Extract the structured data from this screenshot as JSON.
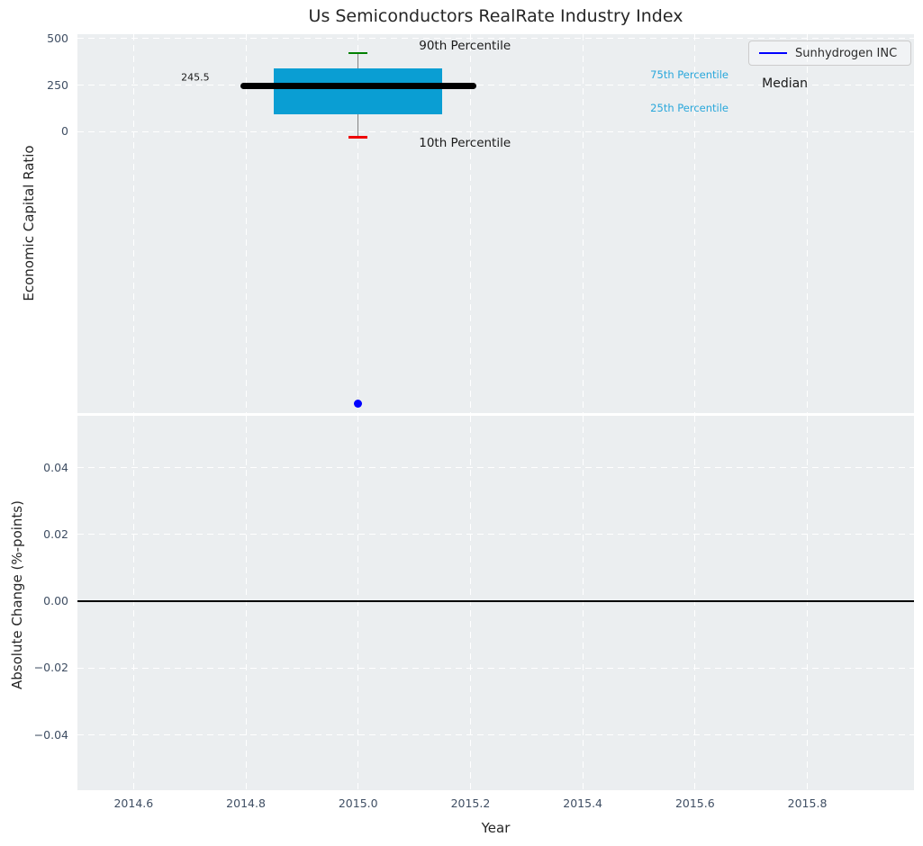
{
  "figure": {
    "title": "Us Semiconductors RealRate Industry Index"
  },
  "palette": {
    "axes_background": "#ebeef0",
    "grid": "#ffffff",
    "tick_label": "#3f4e63",
    "axis_label": "#262626",
    "title": "#262626",
    "box_fill": "#0a9ed3",
    "percentile_label": "#29a7db",
    "median_line": "#000000",
    "whisker": "#828282",
    "cap_90": "#008000",
    "cap_10": "#ee0000",
    "series_blue": "#0000ff",
    "zero_line": "#000000"
  },
  "chart_data": [
    {
      "type": "boxplot",
      "title": "Us Semiconductors RealRate Industry Index",
      "ylabel": "Economic Capital Ratio",
      "xlim": [
        2014.5,
        2015.99
      ],
      "ylim": [
        -1510,
        524
      ],
      "grid": true,
      "legend_position": "upper right",
      "yticks": [
        {
          "value": 0,
          "label": "0"
        },
        {
          "value": 250,
          "label": "250"
        },
        {
          "value": 500,
          "label": "500"
        }
      ],
      "box": {
        "x": 2015.0,
        "p10": -30,
        "p25": 96,
        "median": 245.5,
        "p75": 341,
        "p90": 422,
        "box_half_width": 0.15,
        "median_half_width": 0.21,
        "cap_half_width": 0.017
      },
      "series": [
        {
          "name": "Sunhydrogen INC",
          "type": "scatter",
          "points": [
            {
              "x": 2015.0,
              "y": -1460
            }
          ]
        }
      ],
      "annotations": [
        {
          "text": "90th Percentile",
          "x": 2015.19,
          "y": 461,
          "color": "black",
          "size": 13.5
        },
        {
          "text": "10th Percentile",
          "x": 2015.19,
          "y": -61,
          "color": "black",
          "size": 13.5
        },
        {
          "text": "75th Percentile",
          "x": 2015.59,
          "y": 307,
          "color": "cyan",
          "size": 11.5
        },
        {
          "text": "25th Percentile",
          "x": 2015.59,
          "y": 128,
          "color": "cyan",
          "size": 11.5
        },
        {
          "text": "Median",
          "x": 2015.76,
          "y": 258,
          "color": "black",
          "size": 14
        },
        {
          "text": "245.5",
          "x": 2014.71,
          "y": 292,
          "color": "black",
          "size": 11
        }
      ],
      "legend": {
        "label": "Sunhydrogen INC"
      }
    },
    {
      "type": "line",
      "ylabel": "Absolute Change (%-points)",
      "xlabel": "Year",
      "xlim": [
        2014.5,
        2015.99
      ],
      "ylim": [
        -0.0565,
        0.0555
      ],
      "grid": true,
      "yticks": [
        {
          "value": -0.04,
          "label": "−0.04"
        },
        {
          "value": -0.02,
          "label": "−0.02"
        },
        {
          "value": 0,
          "label": "0.00"
        },
        {
          "value": 0.02,
          "label": "0.02"
        },
        {
          "value": 0.04,
          "label": "0.04"
        }
      ],
      "zero_line": {
        "y": 0
      },
      "series": []
    }
  ],
  "xticks": [
    {
      "value": 2014.6,
      "label": "2014.6"
    },
    {
      "value": 2014.8,
      "label": "2014.8"
    },
    {
      "value": 2015.0,
      "label": "2015.0"
    },
    {
      "value": 2015.2,
      "label": "2015.2"
    },
    {
      "value": 2015.4,
      "label": "2015.4"
    },
    {
      "value": 2015.6,
      "label": "2015.6"
    },
    {
      "value": 2015.8,
      "label": "2015.8"
    }
  ]
}
